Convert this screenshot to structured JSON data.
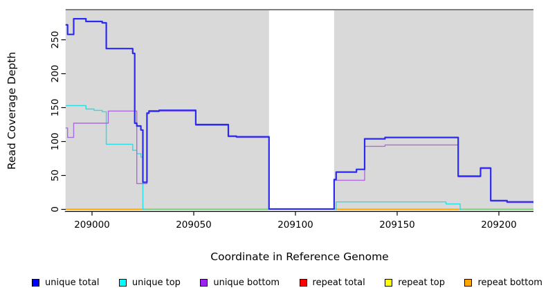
{
  "axis": {
    "xlabel": "Coordinate in Reference Genome",
    "ylabel": "Read Coverage Depth"
  },
  "legend": {
    "items": [
      {
        "label": "unique total",
        "color": "#0000FF"
      },
      {
        "label": "unique top",
        "color": "#00FFFF"
      },
      {
        "label": "unique bottom",
        "color": "#A020F0"
      },
      {
        "label": "repeat total",
        "color": "#FF0000"
      },
      {
        "label": "repeat top",
        "color": "#FFFF00"
      },
      {
        "label": "repeat bottom",
        "color": "#FFA500"
      }
    ]
  },
  "chart_data": {
    "type": "line",
    "title": "",
    "xlabel": "Coordinate in Reference Genome",
    "ylabel": "Read Coverage Depth",
    "xlim": [
      208987,
      209217
    ],
    "ylim": [
      0,
      293
    ],
    "x_ticks": [
      209000,
      209050,
      209100,
      209150,
      209200
    ],
    "y_ticks": [
      0,
      50,
      100,
      150,
      200,
      250
    ],
    "grid": false,
    "legend_position": "bottom",
    "panel_color": "#D9D9D9",
    "gap_region": {
      "from": 209087,
      "to": 209119,
      "color": "#FFFFFF"
    },
    "background_regions": [
      {
        "from": 208987,
        "to": 209087
      },
      {
        "from": 209119,
        "to": 209217
      }
    ],
    "zero_line_segments": [
      {
        "from": 208987,
        "to": 209026,
        "color": "#FFA500"
      },
      {
        "from": 209026,
        "to": 209087,
        "color": "#77CC77"
      },
      {
        "from": 209119,
        "to": 209181,
        "color": "#FFA500"
      },
      {
        "from": 209181,
        "to": 209217,
        "color": "#77CC77"
      }
    ],
    "series": [
      {
        "name": "unique total",
        "color": "#2A2AEF",
        "width": 2.2,
        "segments": [
          [
            [
              208987,
              272
            ],
            [
              208988,
              258
            ],
            [
              208991,
              281
            ],
            [
              208997,
              277
            ],
            [
              209005,
              275
            ],
            [
              209007,
              237
            ],
            [
              209020,
              230
            ],
            [
              209021,
              127
            ],
            [
              209022,
              123
            ],
            [
              209024,
              117
            ],
            [
              209025,
              40
            ],
            [
              209027,
              142
            ],
            [
              209028,
              145
            ],
            [
              209033,
              146
            ],
            [
              209051,
              125
            ],
            [
              209067,
              108
            ],
            [
              209071,
              107
            ],
            [
              209087,
              0.5
            ],
            [
              209119,
              44
            ],
            [
              209120,
              55
            ],
            [
              209130,
              59
            ],
            [
              209134,
              104
            ],
            [
              209144,
              106
            ],
            [
              209180,
              49
            ],
            [
              209191,
              61
            ],
            [
              209196,
              13
            ],
            [
              209204,
              11
            ],
            [
              209217,
              11
            ]
          ]
        ]
      },
      {
        "name": "unique top",
        "color": "#2BDCE4",
        "width": 1.4,
        "segments": [
          [
            [
              208987,
              153
            ],
            [
              208997,
              148
            ],
            [
              209001,
              146
            ],
            [
              209005,
              144
            ],
            [
              209007,
              96
            ],
            [
              209020,
              87
            ],
            [
              209022,
              82
            ],
            [
              209024,
              77
            ],
            [
              209025,
              0
            ],
            [
              209026,
              0
            ]
          ],
          [
            [
              209119,
              0
            ],
            [
              209120,
              11
            ],
            [
              209174,
              8
            ],
            [
              209181,
              0
            ],
            [
              209182,
              0
            ]
          ]
        ]
      },
      {
        "name": "unique bottom",
        "color": "#AC68DF",
        "width": 1.4,
        "segments": [
          [
            [
              208987,
              120
            ],
            [
              208988,
              106
            ],
            [
              208991,
              127
            ],
            [
              209008,
              145
            ],
            [
              209022,
              38
            ],
            [
              209027,
              141
            ],
            [
              209028,
              144
            ],
            [
              209033,
              145
            ],
            [
              209051,
              124
            ],
            [
              209067,
              107
            ],
            [
              209071,
              106
            ],
            [
              209087,
              0.5
            ],
            [
              209119,
              43
            ],
            [
              209134,
              93
            ],
            [
              209144,
              95
            ],
            [
              209180,
              48
            ],
            [
              209191,
              60
            ],
            [
              209196,
              12
            ],
            [
              209204,
              10
            ],
            [
              209217,
              10
            ]
          ]
        ]
      },
      {
        "name": "repeat total",
        "color": "#FF0000",
        "width": 1.4,
        "draw": false,
        "segments": [
          [
            [
              208987,
              0
            ],
            [
              209087,
              0
            ]
          ],
          [
            [
              209119,
              0
            ],
            [
              209217,
              0
            ]
          ]
        ]
      },
      {
        "name": "repeat top",
        "color": "#FFFF00",
        "width": 1.4,
        "draw": false,
        "segments": [
          [
            [
              208987,
              0
            ],
            [
              209087,
              0
            ]
          ],
          [
            [
              209119,
              0
            ],
            [
              209217,
              0
            ]
          ]
        ]
      },
      {
        "name": "repeat bottom",
        "color": "#FFA500",
        "width": 1.4,
        "draw": false,
        "segments": [
          [
            [
              208987,
              0
            ],
            [
              209087,
              0
            ]
          ],
          [
            [
              209119,
              0
            ],
            [
              209217,
              0
            ]
          ]
        ]
      }
    ]
  }
}
